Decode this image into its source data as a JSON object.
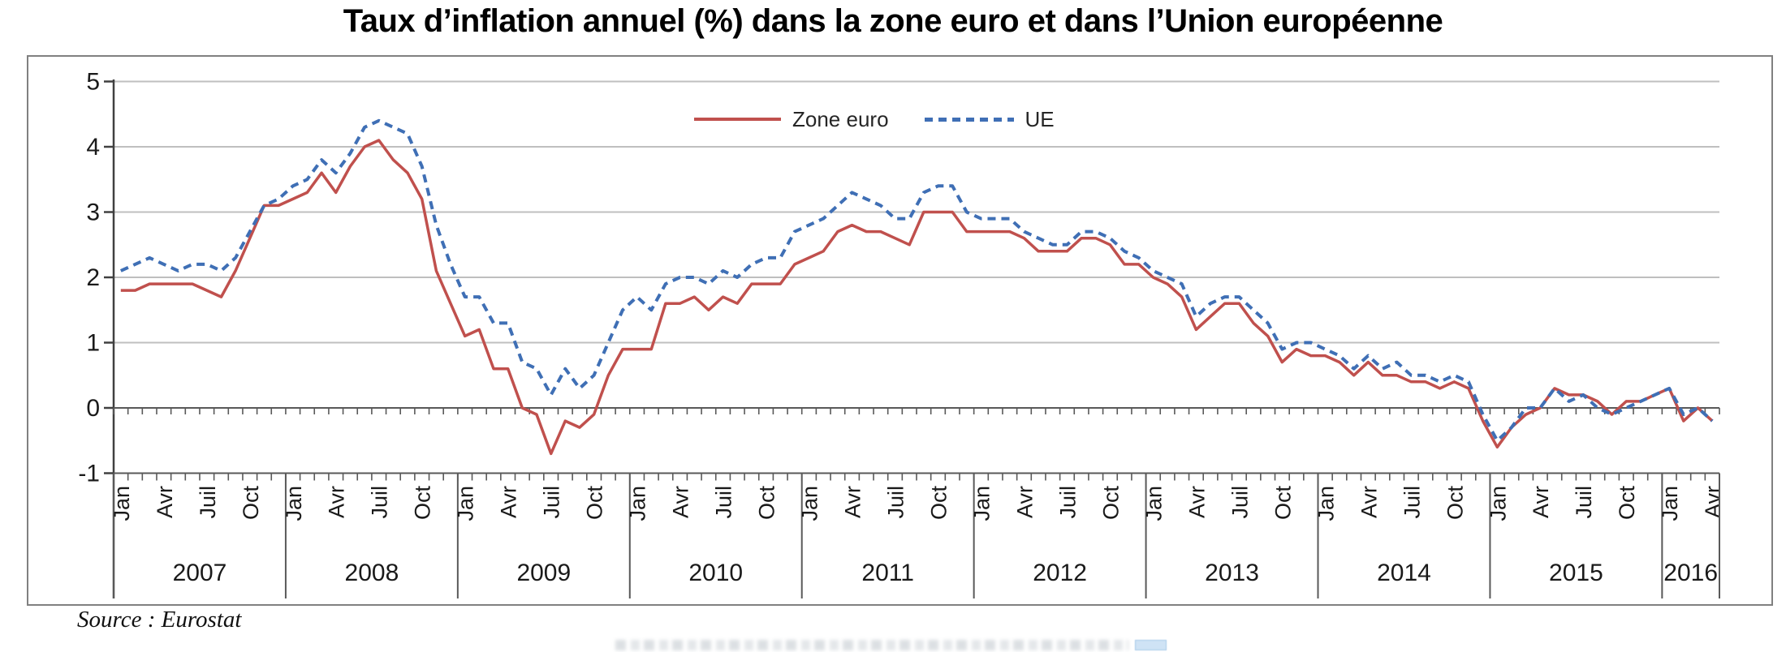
{
  "title": "Taux d’inflation annuel (%) dans la zone euro et dans l’Union européenne",
  "source_note": "Source : Eurostat",
  "colors": {
    "zone_euro": "#C0504D",
    "ue": "#3F6FB5",
    "grid": "#BFBFBF",
    "axis": "#595959",
    "frame_border": "#808080",
    "text": "#1A1A1A"
  },
  "chart_data": {
    "type": "line",
    "title": "Taux d’inflation annuel (%) dans la zone euro et dans l’Union européenne",
    "xlabel": "",
    "ylabel": "",
    "ylim": [
      -1,
      5
    ],
    "yticks": [
      5,
      4,
      3,
      2,
      1,
      0,
      -1
    ],
    "grid": "horizontal",
    "legend_position": "top-center",
    "x_axis": {
      "start": "2007-01",
      "end": "2016-04",
      "total_months": 112,
      "month_tick_labels": [
        "Jan",
        "Avr",
        "Juil",
        "Oct"
      ],
      "month_tick_offsets": [
        0,
        3,
        6,
        9
      ],
      "years": [
        {
          "label": "2007",
          "months": 12
        },
        {
          "label": "2008",
          "months": 12
        },
        {
          "label": "2009",
          "months": 12
        },
        {
          "label": "2010",
          "months": 12
        },
        {
          "label": "2011",
          "months": 12
        },
        {
          "label": "2012",
          "months": 12
        },
        {
          "label": "2013",
          "months": 12
        },
        {
          "label": "2014",
          "months": 12
        },
        {
          "label": "2015",
          "months": 12
        },
        {
          "label": "2016",
          "months": 4
        }
      ]
    },
    "series": [
      {
        "name": "Zone euro",
        "color": "#C0504D",
        "style": "solid",
        "values": [
          1.8,
          1.8,
          1.9,
          1.9,
          1.9,
          1.9,
          1.8,
          1.7,
          2.1,
          2.6,
          3.1,
          3.1,
          3.2,
          3.3,
          3.6,
          3.3,
          3.7,
          4.0,
          4.1,
          3.8,
          3.6,
          3.2,
          2.1,
          1.6,
          1.1,
          1.2,
          0.6,
          0.6,
          0.0,
          -0.1,
          -0.7,
          -0.2,
          -0.3,
          -0.1,
          0.5,
          0.9,
          0.9,
          0.9,
          1.6,
          1.6,
          1.7,
          1.5,
          1.7,
          1.6,
          1.9,
          1.9,
          1.9,
          2.2,
          2.3,
          2.4,
          2.7,
          2.8,
          2.7,
          2.7,
          2.6,
          2.5,
          3.0,
          3.0,
          3.0,
          2.7,
          2.7,
          2.7,
          2.7,
          2.6,
          2.4,
          2.4,
          2.4,
          2.6,
          2.6,
          2.5,
          2.2,
          2.2,
          2.0,
          1.9,
          1.7,
          1.2,
          1.4,
          1.6,
          1.6,
          1.3,
          1.1,
          0.7,
          0.9,
          0.8,
          0.8,
          0.7,
          0.5,
          0.7,
          0.5,
          0.5,
          0.4,
          0.4,
          0.3,
          0.4,
          0.3,
          -0.2,
          -0.6,
          -0.3,
          -0.1,
          0.0,
          0.3,
          0.2,
          0.2,
          0.1,
          -0.1,
          0.1,
          0.1,
          0.2,
          0.3,
          -0.2,
          0.0,
          -0.2
        ]
      },
      {
        "name": "UE",
        "color": "#3F6FB5",
        "style": "dashed",
        "values": [
          2.1,
          2.2,
          2.3,
          2.2,
          2.1,
          2.2,
          2.2,
          2.1,
          2.3,
          2.7,
          3.1,
          3.2,
          3.4,
          3.5,
          3.8,
          3.6,
          3.9,
          4.3,
          4.4,
          4.3,
          4.2,
          3.7,
          2.8,
          2.2,
          1.7,
          1.7,
          1.3,
          1.3,
          0.7,
          0.6,
          0.2,
          0.6,
          0.3,
          0.5,
          1.0,
          1.5,
          1.7,
          1.5,
          1.9,
          2.0,
          2.0,
          1.9,
          2.1,
          2.0,
          2.2,
          2.3,
          2.3,
          2.7,
          2.8,
          2.9,
          3.1,
          3.3,
          3.2,
          3.1,
          2.9,
          2.9,
          3.3,
          3.4,
          3.4,
          3.0,
          2.9,
          2.9,
          2.9,
          2.7,
          2.6,
          2.5,
          2.5,
          2.7,
          2.7,
          2.6,
          2.4,
          2.3,
          2.1,
          2.0,
          1.9,
          1.4,
          1.6,
          1.7,
          1.7,
          1.5,
          1.3,
          0.9,
          1.0,
          1.0,
          0.9,
          0.8,
          0.6,
          0.8,
          0.6,
          0.7,
          0.5,
          0.5,
          0.4,
          0.5,
          0.4,
          -0.1,
          -0.5,
          -0.3,
          0.0,
          0.0,
          0.3,
          0.1,
          0.2,
          0.0,
          -0.1,
          0.0,
          0.1,
          0.2,
          0.3,
          -0.1,
          0.0,
          -0.2
        ]
      }
    ]
  }
}
